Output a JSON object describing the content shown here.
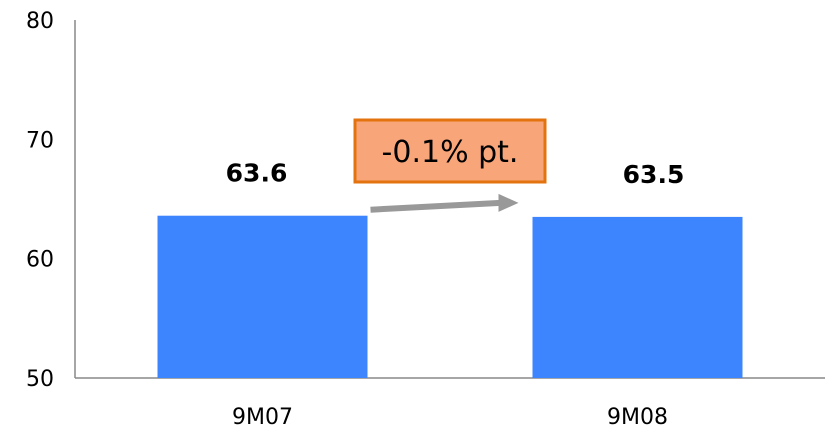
{
  "chart_data": {
    "type": "bar",
    "categories": [
      "9M07",
      "9M08"
    ],
    "values": [
      63.6,
      63.5
    ],
    "data_labels": [
      "63.6",
      "63.5"
    ],
    "ylim": [
      50,
      80
    ],
    "yticks": [
      50,
      60,
      70,
      80
    ],
    "ytick_labels": [
      "50",
      "60",
      "70",
      "80"
    ],
    "grid": false,
    "legend": "none",
    "title": "",
    "xlabel": "",
    "ylabel": "",
    "annotation": {
      "text": "-0.1% pt.",
      "from_category": "9M07",
      "to_category": "9M08"
    },
    "colors": {
      "bar": "#3d85ff",
      "axis": "#888888",
      "annotation_fill": "#f9a57a",
      "annotation_border": "#e2730e",
      "arrow": "#999999"
    }
  }
}
